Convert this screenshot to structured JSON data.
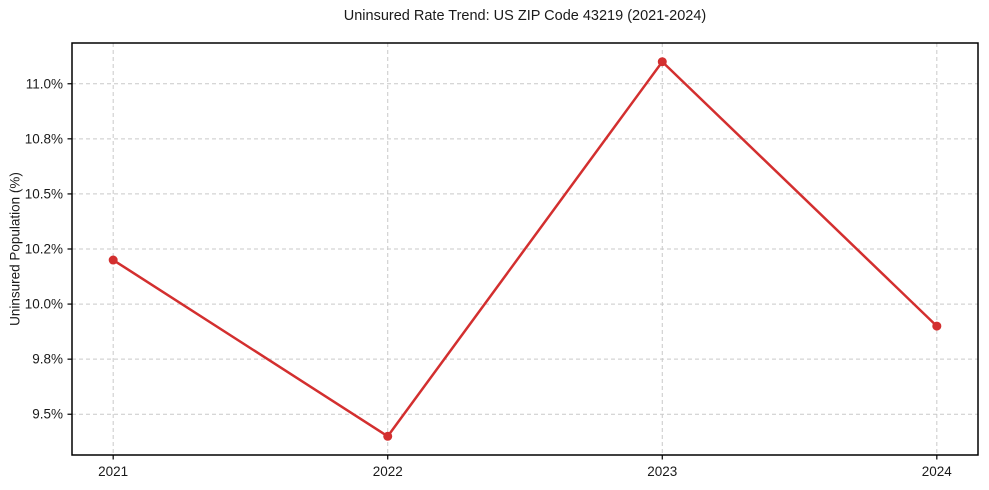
{
  "figure": {
    "background": "#ffffff"
  },
  "chart": {
    "title": "Uninsured Rate Trend: US ZIP Code 43219 (2021-2024)",
    "ylabel": "Uninsured Population (%)"
  },
  "chart_data": {
    "type": "line",
    "title": "Uninsured Rate Trend: US ZIP Code 43219 (2021-2024)",
    "xlabel": "",
    "ylabel": "Uninsured Population (%)",
    "x": [
      2021,
      2022,
      2023,
      2024
    ],
    "values": [
      10.2,
      9.4,
      11.1,
      9.9
    ],
    "xtick_labels": [
      "2021",
      "2022",
      "2023",
      "2024"
    ],
    "yticks": [
      9.5,
      9.75,
      10.0,
      10.25,
      10.5,
      10.75,
      11.0
    ],
    "ytick_labels": [
      "9.5%",
      "9.8%",
      "10.0%",
      "10.2%",
      "10.5%",
      "10.8%",
      "11.0%"
    ],
    "xlim": [
      2020.85,
      2024.15
    ],
    "ylim": [
      9.315,
      11.185
    ],
    "grid": true,
    "grid_style": "dashed",
    "legend": "none",
    "line_color": "#d32f2f",
    "marker": "circle",
    "marker_color": "#d32f2f",
    "grid_color": "#c9c9c9",
    "text_color": "#1a1a1a",
    "spine_color": "#000000"
  }
}
